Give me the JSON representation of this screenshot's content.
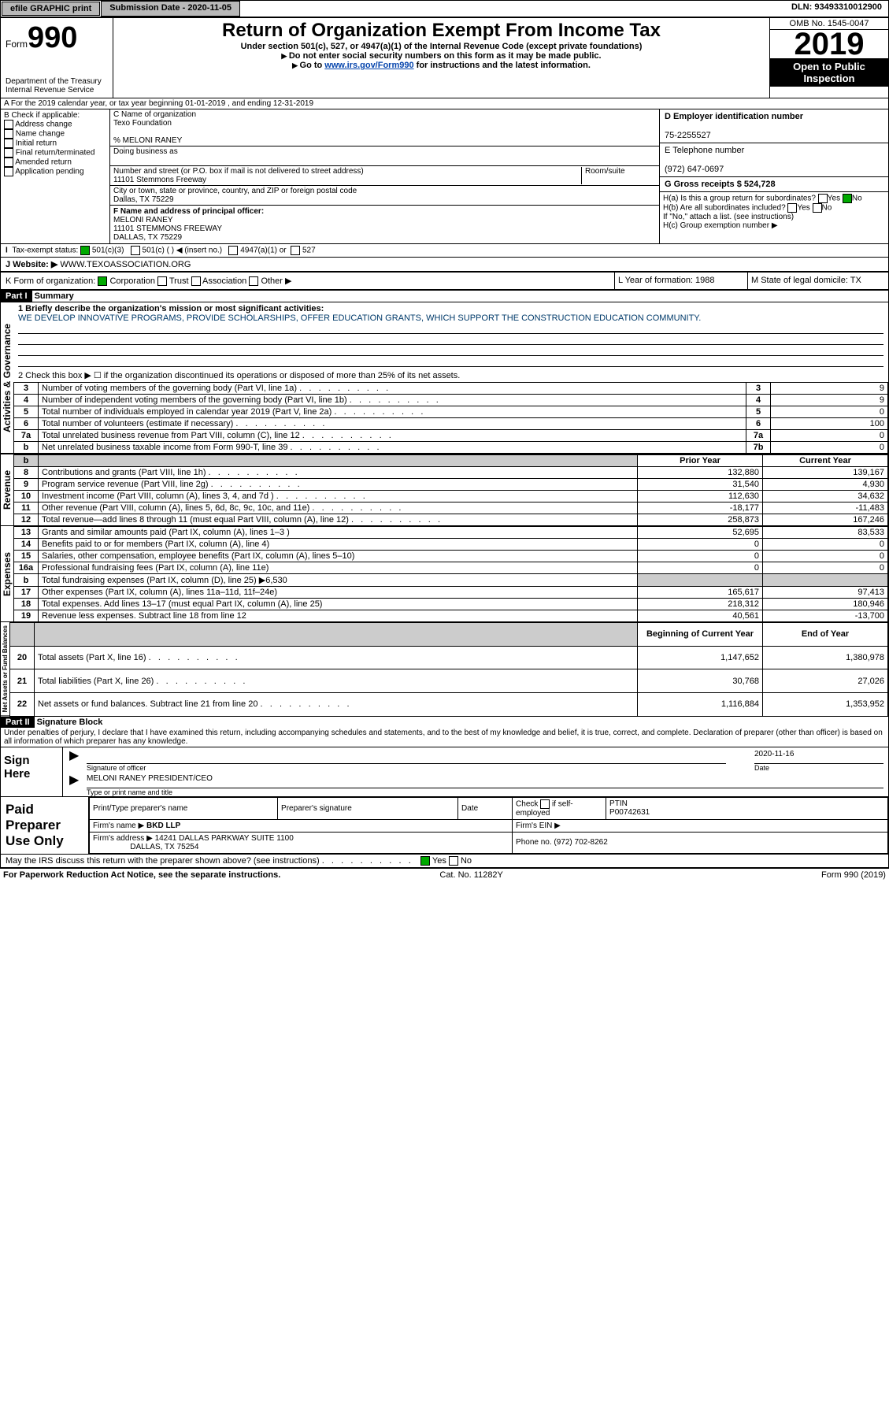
{
  "top": {
    "efile": "efile GRAPHIC print",
    "subdate_lbl": "Submission Date - 2020-11-05",
    "dln": "DLN: 93493310012900"
  },
  "hdr": {
    "form_word": "Form",
    "form_num": "990",
    "dept1": "Department of the Treasury",
    "dept2": "Internal Revenue Service",
    "title": "Return of Organization Exempt From Income Tax",
    "sub1": "Under section 501(c), 527, or 4947(a)(1) of the Internal Revenue Code (except private foundations)",
    "sub2": "Do not enter social security numbers on this form as it may be made public.",
    "sub3a": "Go to ",
    "sub3_link": "www.irs.gov/Form990",
    "sub3b": " for instructions and the latest information.",
    "omb": "OMB No. 1545-0047",
    "year": "2019",
    "open": "Open to Public Inspection"
  },
  "A": "A For the 2019 calendar year, or tax year beginning 01-01-2019   , and ending 12-31-2019",
  "B": {
    "hdr": "B Check if applicable:",
    "items": [
      "Address change",
      "Name change",
      "Initial return",
      "Final return/terminated",
      "Amended return",
      "Application pending"
    ]
  },
  "C": {
    "c_lbl": "C Name of organization",
    "org": "Texo Foundation",
    "care_lbl": "% MELONI RANEY",
    "dba_lbl": "Doing business as",
    "addr_line_lbl": "Number and street (or P.O. box if mail is not delivered to street address)",
    "room_lbl": "Room/suite",
    "addr": "11101 Stemmons Freeway",
    "city_lbl": "City or town, state or province, country, and ZIP or foreign postal code",
    "city": "Dallas, TX  75229",
    "F_lbl": "F  Name and address of principal officer:",
    "F_name": "MELONI RANEY",
    "F_addr1": "11101 STEMMONS FREEWAY",
    "F_addr2": "DALLAS, TX  75229"
  },
  "D": {
    "d_lbl": "D Employer identification number",
    "ein": "75-2255527",
    "e_lbl": "E Telephone number",
    "phone": "(972) 647-0697",
    "g_lbl": "G Gross receipts $ 524,728"
  },
  "H": {
    "a": "H(a)  Is this a group return for subordinates?",
    "b": "H(b)  Are all subordinates included?",
    "b_note": "If \"No,\" attach a list. (see instructions)",
    "c": "H(c)  Group exemption number ▶",
    "yes": "Yes",
    "no": "No"
  },
  "I": {
    "lbl": "Tax-exempt status:",
    "o1": "501(c)(3)",
    "o2": "501(c) (  ) ◀ (insert no.)",
    "o3": "4947(a)(1) or",
    "o4": "527"
  },
  "J": {
    "lbl": "J   Website: ▶",
    "val": "WWW.TEXOASSOCIATION.ORG"
  },
  "K": {
    "lbl": "K Form of organization:",
    "o1": "Corporation",
    "o2": "Trust",
    "o3": "Association",
    "o4": "Other ▶"
  },
  "L": {
    "lbl": "L Year of formation: 1988"
  },
  "M": {
    "lbl": "M State of legal domicile: TX"
  },
  "part1": {
    "hdr": "Part I",
    "title": "Summary"
  },
  "mission_lbl": "1  Briefly describe the organization's mission or most significant activities:",
  "mission": "WE DEVELOP INNOVATIVE PROGRAMS, PROVIDE SCHOLARSHIPS, OFFER EDUCATION GRANTS, WHICH SUPPORT THE CONSTRUCTION EDUCATION COMMUNITY.",
  "line2": "2   Check this box ▶ ☐  if the organization discontinued its operations or disposed of more than 25% of its net assets.",
  "gov": [
    {
      "n": "3",
      "t": "Number of voting members of the governing body (Part VI, line 1a)",
      "b": "3",
      "v": "9"
    },
    {
      "n": "4",
      "t": "Number of independent voting members of the governing body (Part VI, line 1b)",
      "b": "4",
      "v": "9"
    },
    {
      "n": "5",
      "t": "Total number of individuals employed in calendar year 2019 (Part V, line 2a)",
      "b": "5",
      "v": "0"
    },
    {
      "n": "6",
      "t": "Total number of volunteers (estimate if necessary)",
      "b": "6",
      "v": "100"
    },
    {
      "n": "7a",
      "t": "Total unrelated business revenue from Part VIII, column (C), line 12",
      "b": "7a",
      "v": "0"
    },
    {
      "n": "b",
      "t": "Net unrelated business taxable income from Form 990-T, line 39",
      "b": "7b",
      "v": "0"
    }
  ],
  "py": "Prior Year",
  "cy": "Current Year",
  "rev": [
    {
      "n": "8",
      "t": "Contributions and grants (Part VIII, line 1h)",
      "p": "132,880",
      "c": "139,167"
    },
    {
      "n": "9",
      "t": "Program service revenue (Part VIII, line 2g)",
      "p": "31,540",
      "c": "4,930"
    },
    {
      "n": "10",
      "t": "Investment income (Part VIII, column (A), lines 3, 4, and 7d )",
      "p": "112,630",
      "c": "34,632"
    },
    {
      "n": "11",
      "t": "Other revenue (Part VIII, column (A), lines 5, 6d, 8c, 9c, 10c, and 11e)",
      "p": "-18,177",
      "c": "-11,483"
    },
    {
      "n": "12",
      "t": "Total revenue—add lines 8 through 11 (must equal Part VIII, column (A), line 12)",
      "p": "258,873",
      "c": "167,246"
    }
  ],
  "exp": [
    {
      "n": "13",
      "t": "Grants and similar amounts paid (Part IX, column (A), lines 1–3 )",
      "p": "52,695",
      "c": "83,533"
    },
    {
      "n": "14",
      "t": "Benefits paid to or for members (Part IX, column (A), line 4)",
      "p": "0",
      "c": "0"
    },
    {
      "n": "15",
      "t": "Salaries, other compensation, employee benefits (Part IX, column (A), lines 5–10)",
      "p": "0",
      "c": "0"
    },
    {
      "n": "16a",
      "t": "Professional fundraising fees (Part IX, column (A), line 11e)",
      "p": "0",
      "c": "0"
    },
    {
      "n": "b",
      "t": "Total fundraising expenses (Part IX, column (D), line 25) ▶6,530",
      "p": "",
      "c": "",
      "shade": true
    },
    {
      "n": "17",
      "t": "Other expenses (Part IX, column (A), lines 11a–11d, 11f–24e)",
      "p": "165,617",
      "c": "97,413"
    },
    {
      "n": "18",
      "t": "Total expenses. Add lines 13–17 (must equal Part IX, column (A), line 25)",
      "p": "218,312",
      "c": "180,946"
    },
    {
      "n": "19",
      "t": "Revenue less expenses. Subtract line 18 from line 12",
      "p": "40,561",
      "c": "-13,700"
    }
  ],
  "boy": "Beginning of Current Year",
  "eoy": "End of Year",
  "net": [
    {
      "n": "20",
      "t": "Total assets (Part X, line 16)",
      "p": "1,147,652",
      "c": "1,380,978"
    },
    {
      "n": "21",
      "t": "Total liabilities (Part X, line 26)",
      "p": "30,768",
      "c": "27,026"
    },
    {
      "n": "22",
      "t": "Net assets or fund balances. Subtract line 21 from line 20",
      "p": "1,116,884",
      "c": "1,353,952"
    }
  ],
  "tabs": {
    "act": "Activities & Governance",
    "rev": "Revenue",
    "exp": "Expenses",
    "net": "Net Assets or Fund Balances"
  },
  "part2": {
    "hdr": "Part II",
    "title": "Signature Block"
  },
  "pen": "Under penalties of perjury, I declare that I have examined this return, including accompanying schedules and statements, and to the best of my knowledge and belief, it is true, correct, and complete. Declaration of preparer (other than officer) is based on all information of which preparer has any knowledge.",
  "sign": {
    "lbl": "Sign Here",
    "sig_of": "Signature of officer",
    "date_lbl": "Date",
    "date": "2020-11-16",
    "name": "MELONI RANEY PRESIDENT/CEO",
    "name_lbl": "Type or print name and title"
  },
  "prep": {
    "lbl": "Paid Preparer Use Only",
    "h1": "Print/Type preparer's name",
    "h2": "Preparer's signature",
    "h3": "Date",
    "h4_a": "Check",
    "h4_b": "if self-employed",
    "h5": "PTIN",
    "ptin": "P00742631",
    "f_lbl": "Firm's name  ▶",
    "f": "BKD LLP",
    "fein": "Firm's EIN ▶",
    "fa_lbl": "Firm's address ▶",
    "fa1": "14241 DALLAS PARKWAY SUITE 1100",
    "fa2": "DALLAS, TX  75254",
    "ph_lbl": "Phone no. (972) 702-8262"
  },
  "disc": "May the IRS discuss this return with the preparer shown above? (see instructions)",
  "foot": {
    "l": "For Paperwork Reduction Act Notice, see the separate instructions.",
    "c": "Cat. No. 11282Y",
    "r": "Form 990 (2019)"
  }
}
